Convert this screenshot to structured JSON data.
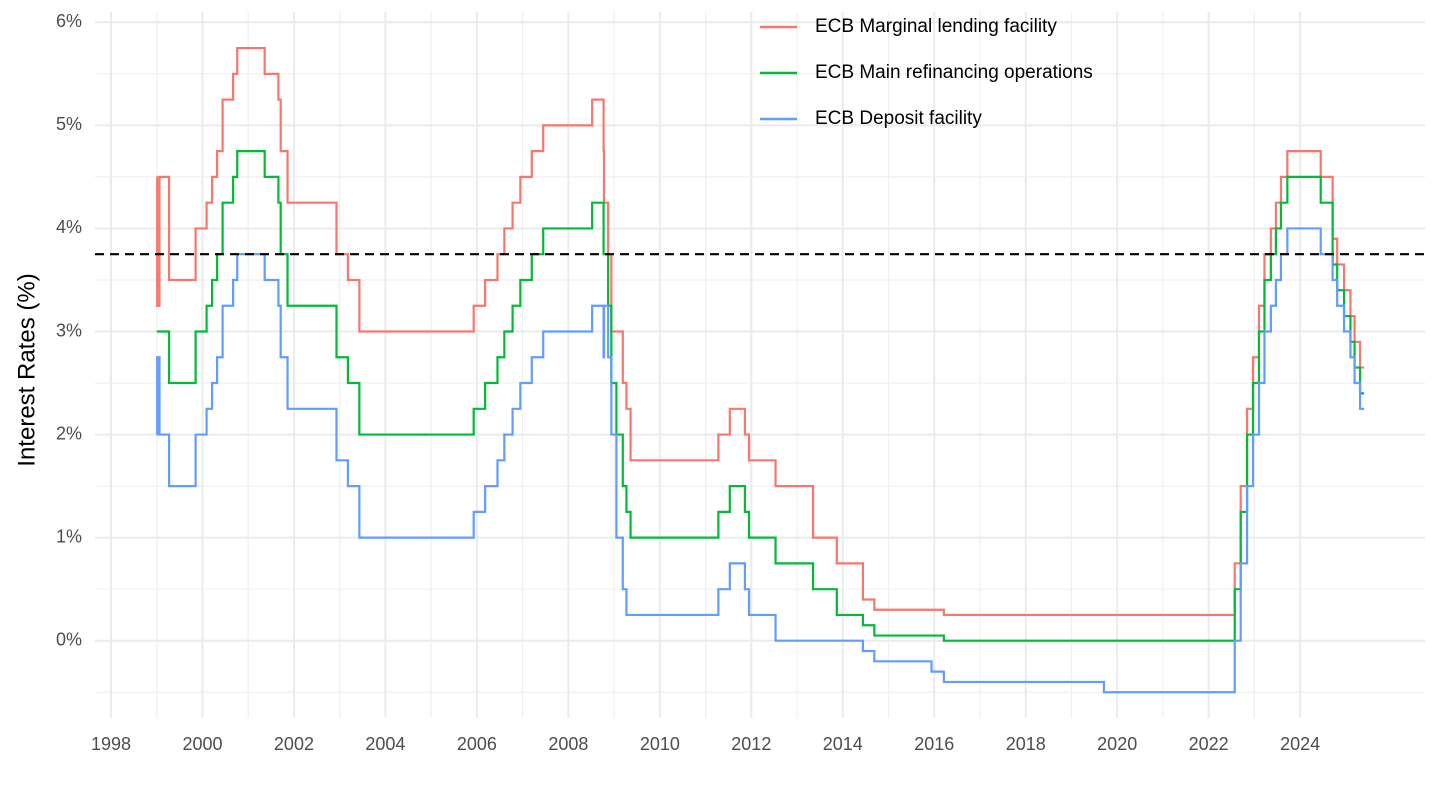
{
  "chart_data": {
    "type": "step",
    "y_label": "Interest Rates (%)",
    "x": [
      1999.0,
      1999.01,
      1999.06,
      1999.27,
      1999.85,
      2000.09,
      2000.21,
      2000.32,
      2000.44,
      2000.67,
      2000.76,
      2001.36,
      2001.66,
      2001.71,
      2001.86,
      2002.93,
      2003.18,
      2003.43,
      2005.93,
      2006.18,
      2006.45,
      2006.6,
      2006.78,
      2006.95,
      2007.2,
      2007.45,
      2008.52,
      2008.77,
      2008.78,
      2008.87,
      2008.94,
      2009.05,
      2009.19,
      2009.27,
      2009.36,
      2011.28,
      2011.53,
      2011.86,
      2011.95,
      2012.53,
      2013.35,
      2013.87,
      2014.44,
      2014.69,
      2015.94,
      2016.21,
      2019.71,
      2022.57,
      2022.7,
      2022.84,
      2022.97,
      2023.1,
      2023.22,
      2023.36,
      2023.47,
      2023.58,
      2023.72,
      2024.45,
      2024.71,
      2024.81,
      2024.96,
      2025.1,
      2025.19,
      2025.31,
      2025.4
    ],
    "series": [
      {
        "name": "ECB Marginal lending facility",
        "color": "#F8766D",
        "values": [
          4.5,
          3.25,
          4.5,
          3.5,
          4.0,
          4.25,
          4.5,
          4.75,
          5.25,
          5.5,
          5.75,
          5.5,
          5.25,
          4.75,
          4.25,
          3.75,
          3.5,
          3.0,
          3.25,
          3.5,
          3.75,
          4.0,
          4.25,
          4.5,
          4.75,
          5.0,
          5.25,
          4.75,
          4.25,
          3.75,
          3.0,
          3.0,
          2.5,
          2.25,
          1.75,
          2.0,
          2.25,
          2.0,
          1.75,
          1.5,
          1.0,
          0.75,
          0.4,
          0.3,
          0.3,
          0.25,
          0.25,
          0.75,
          1.5,
          2.25,
          2.75,
          3.25,
          3.75,
          4.0,
          4.25,
          4.5,
          4.75,
          4.5,
          3.9,
          3.65,
          3.4,
          3.15,
          2.9,
          2.65,
          2.65
        ]
      },
      {
        "name": "ECB Main refinancing operations",
        "color": "#00BA38",
        "values": [
          3.0,
          3.0,
          3.0,
          2.5,
          3.0,
          3.25,
          3.5,
          3.75,
          4.25,
          4.5,
          4.75,
          4.5,
          4.25,
          3.75,
          3.25,
          2.75,
          2.5,
          2.0,
          2.25,
          2.5,
          2.75,
          3.0,
          3.25,
          3.5,
          3.75,
          4.0,
          4.25,
          3.75,
          3.75,
          3.25,
          2.5,
          2.0,
          1.5,
          1.25,
          1.0,
          1.25,
          1.5,
          1.25,
          1.0,
          0.75,
          0.5,
          0.25,
          0.15,
          0.05,
          0.05,
          0.0,
          0.0,
          0.5,
          1.25,
          2.0,
          2.5,
          3.0,
          3.5,
          3.75,
          4.0,
          4.25,
          4.5,
          4.25,
          3.65,
          3.4,
          3.15,
          2.9,
          2.65,
          2.4,
          2.4
        ]
      },
      {
        "name": "ECB Deposit facility",
        "color": "#619CFF",
        "values": [
          2.0,
          2.75,
          2.0,
          1.5,
          2.0,
          2.25,
          2.5,
          2.75,
          3.25,
          3.5,
          3.75,
          3.5,
          3.25,
          2.75,
          2.25,
          1.75,
          1.5,
          1.0,
          1.25,
          1.5,
          1.75,
          2.0,
          2.25,
          2.5,
          2.75,
          3.0,
          3.25,
          2.75,
          3.25,
          2.75,
          2.0,
          1.0,
          0.5,
          0.25,
          0.25,
          0.5,
          0.75,
          0.5,
          0.25,
          0.0,
          0.0,
          0.0,
          -0.1,
          -0.2,
          -0.3,
          -0.4,
          -0.5,
          0.0,
          0.75,
          1.5,
          2.0,
          2.5,
          3.0,
          3.25,
          3.5,
          3.75,
          4.0,
          3.75,
          3.5,
          3.25,
          3.0,
          2.75,
          2.5,
          2.25,
          2.25
        ]
      }
    ],
    "hline": 3.75,
    "xlim": [
      1997.65,
      2026.73
    ],
    "xticks": [
      1998,
      2000,
      2002,
      2004,
      2006,
      2008,
      2010,
      2012,
      2014,
      2016,
      2018,
      2020,
      2022,
      2024
    ],
    "ylim": [
      -0.75,
      6.1
    ],
    "yticks": [
      {
        "value": 0,
        "label": "0%"
      },
      {
        "value": 1,
        "label": "1%"
      },
      {
        "value": 2,
        "label": "2%"
      },
      {
        "value": 3,
        "label": "3%"
      },
      {
        "value": 4,
        "label": "4%"
      },
      {
        "value": 5,
        "label": "5%"
      },
      {
        "value": 6,
        "label": "6%"
      }
    ],
    "grid": true,
    "minor_grid": true,
    "legend": "top"
  }
}
